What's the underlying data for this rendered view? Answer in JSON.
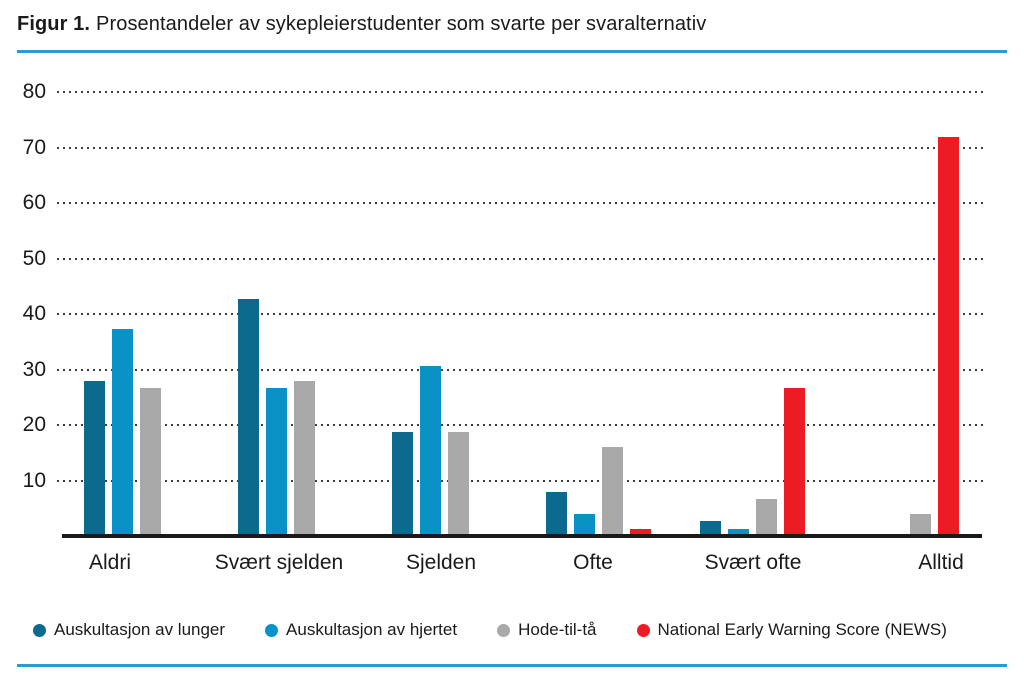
{
  "figure": {
    "title_prefix": "Figur 1.",
    "title_text": "Prosentandeler av sykepleierstudenter som svarte per svaralternativ",
    "rule_color": "#2e9ad2",
    "axis_color": "#1a1a1a",
    "gridline_color": "#3c3c3c"
  },
  "chart_data": {
    "type": "bar",
    "title": "Figur 1. Prosentandeler av sykepleierstudenter som svarte per svaralternativ",
    "categories": [
      "Aldri",
      "Svært sjelden",
      "Sjelden",
      "Ofte",
      "Svært ofte",
      "Alltid"
    ],
    "series": [
      {
        "name": "Auskultasjon av lunger",
        "color": "#0b6a8e",
        "values": [
          28,
          42.7,
          18.7,
          8,
          2.7,
          0
        ]
      },
      {
        "name": "Auskultasjon av hjertet",
        "color": "#0a91c6",
        "values": [
          37.3,
          26.7,
          30.7,
          4,
          1.3,
          0
        ]
      },
      {
        "name": "Hode-til-tå",
        "color": "#a9a9a9",
        "values": [
          26.7,
          28,
          18.7,
          16,
          6.7,
          4
        ]
      },
      {
        "name": "National Early Warning Score (NEWS)",
        "color": "#ed1c24",
        "values": [
          0,
          0,
          0,
          1.3,
          26.7,
          72
        ]
      }
    ],
    "yticks": [
      80,
      70,
      60,
      50,
      40,
      30,
      20,
      10
    ],
    "ylim": [
      0,
      80
    ],
    "xlabel": "",
    "ylabel": "",
    "grid": "horizontal-dotted",
    "legend_position": "bottom"
  }
}
